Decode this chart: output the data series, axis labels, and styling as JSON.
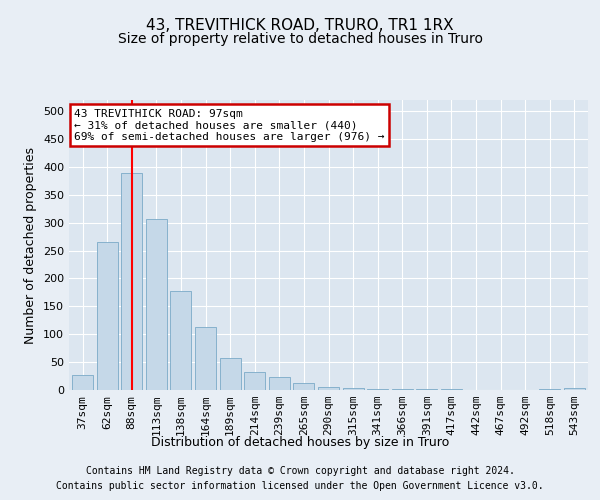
{
  "title": "43, TREVITHICK ROAD, TRURO, TR1 1RX",
  "subtitle": "Size of property relative to detached houses in Truro",
  "xlabel": "Distribution of detached houses by size in Truro",
  "ylabel": "Number of detached properties",
  "footer_line1": "Contains HM Land Registry data © Crown copyright and database right 2024.",
  "footer_line2": "Contains public sector information licensed under the Open Government Licence v3.0.",
  "categories": [
    "37sqm",
    "62sqm",
    "88sqm",
    "113sqm",
    "138sqm",
    "164sqm",
    "189sqm",
    "214sqm",
    "239sqm",
    "265sqm",
    "290sqm",
    "315sqm",
    "341sqm",
    "366sqm",
    "391sqm",
    "417sqm",
    "442sqm",
    "467sqm",
    "492sqm",
    "518sqm",
    "543sqm"
  ],
  "values": [
    27,
    265,
    390,
    307,
    178,
    113,
    57,
    32,
    24,
    12,
    6,
    4,
    2,
    1,
    1,
    1,
    0,
    0,
    0,
    1,
    3
  ],
  "bar_color": "#c5d8e8",
  "bar_edge_color": "#7aaac8",
  "red_line_index": 2,
  "annotation_text_line1": "43 TREVITHICK ROAD: 97sqm",
  "annotation_text_line2": "← 31% of detached houses are smaller (440)",
  "annotation_text_line3": "69% of semi-detached houses are larger (976) →",
  "annotation_box_color": "#ffffff",
  "annotation_box_edge": "#cc0000",
  "ylim": [
    0,
    520
  ],
  "yticks": [
    0,
    50,
    100,
    150,
    200,
    250,
    300,
    350,
    400,
    450,
    500
  ],
  "bg_color": "#e8eef5",
  "plot_bg_color": "#dce6f0",
  "grid_color": "#ffffff",
  "title_fontsize": 11,
  "subtitle_fontsize": 10,
  "tick_fontsize": 8,
  "label_fontsize": 9,
  "footer_fontsize": 7
}
